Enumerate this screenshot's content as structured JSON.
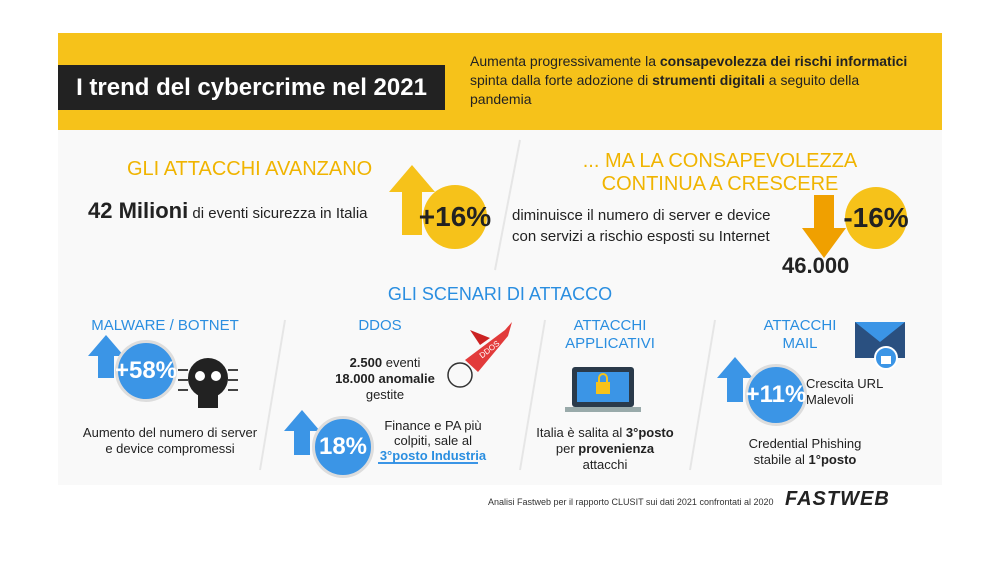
{
  "header": {
    "title": "I trend del cybercrime nel 2021",
    "subtitle": [
      {
        "t": "Aumenta progressivamente la ",
        "b": false
      },
      {
        "t": "consapevolezza dei rischi informatici",
        "b": true
      },
      {
        "t": " spinta dalla forte adozione di ",
        "b": false
      },
      {
        "t": "strumenti digitali",
        "b": true
      },
      {
        "t": " a seguito della pandemia",
        "b": false
      }
    ]
  },
  "left": {
    "heading": "GLI ATTACCHI AVANZANO",
    "text": [
      {
        "t": "42 Milioni",
        "b": true
      },
      {
        "t": " di eventi sicurezza in Italia",
        "b": false
      }
    ],
    "badge": "+16%"
  },
  "right": {
    "heading": "... MA LA CONSAPEVOLEZZA CONTINUA A CRESCERE",
    "text": [
      {
        "t": "diminuisce il numero di server e device con servizi a rischio esposti su Internet",
        "b": false
      }
    ],
    "badge": "-16%",
    "figure": "46.000"
  },
  "scenarios": {
    "title": "GLI SCENARI DI ATTACCO",
    "columns": [
      {
        "heading": "MALWARE / BOTNET",
        "badge": "+58%",
        "text": [
          {
            "t": "Aumento del numero di server e device compromessi",
            "b": false
          }
        ]
      },
      {
        "heading": "DDOS",
        "text": [
          {
            "t": "2.500",
            "b": true
          },
          {
            "t": " eventi ",
            "b": false
          },
          {
            "t": "18.000 anomalie",
            "b": true
          },
          {
            "t": " gestite",
            "b": false
          }
        ],
        "icon_label": "DDOS",
        "badge": "18%",
        "text2": [
          {
            "t": "Finance e PA più colpiti, sale al ",
            "b": false
          },
          {
            "t": "3°posto Industria",
            "b": true
          }
        ]
      },
      {
        "heading": "ATTACCHI APPLICATIVI",
        "text": [
          {
            "t": "Italia è salita al ",
            "b": false
          },
          {
            "t": "3°posto",
            "b": true
          },
          {
            "t": " per ",
            "b": false
          },
          {
            "t": "provenienza",
            "b": true
          },
          {
            "t": " attacchi",
            "b": false
          }
        ]
      },
      {
        "heading": "ATTACCHI MAIL",
        "badge": "+11%",
        "text": [
          {
            "t": "Crescita URL Malevoli",
            "b": false
          }
        ],
        "text2": [
          {
            "t": "Credential Phishing stabile al ",
            "b": false
          },
          {
            "t": "1°posto",
            "b": true
          }
        ]
      }
    ]
  },
  "footer": {
    "note": "Analisi Fastweb per il rapporto CLUSIT sui dati 2021 confrontati al 2020",
    "logo": "FASTWEB"
  }
}
